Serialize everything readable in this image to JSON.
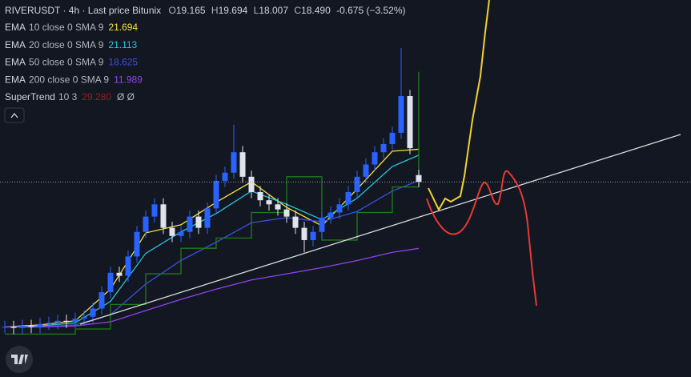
{
  "chart_data": {
    "type": "candlestick",
    "header": {
      "symbol": "RIVERUSDT · 4h · Last price Bitunix",
      "ohlc": [
        {
          "k": "O",
          "v": "19.165"
        },
        {
          "k": "H",
          "v": "19.694"
        },
        {
          "k": "L",
          "v": "18.007"
        },
        {
          "k": "C",
          "v": "18.490"
        }
      ],
      "change": "-0.675 (−3.52%)"
    },
    "ylim": [
      -0.6,
      36.3
    ],
    "up_color": "#2962ff",
    "down_color": "#e0e3eb",
    "last_price_line": true,
    "open": [
      4.3,
      4.3,
      4.2,
      4.4,
      4.3,
      4.6,
      4.7,
      4.9,
      4.8,
      5.1,
      5.3,
      6.1,
      7.7,
      9.6,
      9.3,
      11.2,
      13.6,
      15.1,
      16.3,
      14.0,
      13.2,
      13.6,
      15.1,
      14.0,
      15.9,
      18.6,
      19.4,
      21.4,
      19.0,
      17.5,
      16.7,
      16.3,
      15.8,
      15.1,
      14.0,
      12.8,
      13.6,
      15.0,
      15.5,
      16.3,
      17.5,
      19.0,
      20.2,
      21.4,
      22.2,
      23.3,
      26.9,
      19.165
    ],
    "high": [
      4.9,
      4.9,
      5.0,
      5.0,
      5.2,
      5.3,
      5.5,
      5.5,
      5.7,
      5.9,
      6.7,
      8.3,
      10.2,
      10.2,
      11.8,
      14.2,
      15.7,
      16.9,
      16.9,
      14.6,
      14.2,
      15.7,
      15.7,
      16.5,
      19.2,
      20.0,
      24.1,
      22.0,
      19.6,
      18.1,
      17.3,
      16.9,
      16.4,
      15.7,
      14.6,
      14.2,
      15.6,
      16.1,
      16.9,
      18.1,
      19.6,
      20.8,
      22.0,
      22.8,
      23.9,
      31.6,
      27.5,
      19.694
    ],
    "low": [
      3.7,
      3.6,
      3.6,
      3.7,
      3.7,
      4.0,
      4.1,
      4.2,
      4.2,
      4.5,
      4.7,
      5.5,
      7.1,
      8.7,
      8.7,
      10.6,
      13.0,
      14.5,
      13.4,
      12.6,
      12.6,
      13.0,
      13.4,
      13.4,
      15.3,
      18.0,
      18.8,
      18.4,
      16.9,
      16.1,
      15.7,
      15.2,
      14.5,
      13.4,
      11.6,
      12.2,
      13.0,
      14.4,
      14.9,
      15.7,
      16.9,
      18.4,
      19.6,
      20.8,
      21.6,
      22.7,
      21.2,
      18.007
    ],
    "close": [
      4.3,
      4.2,
      4.4,
      4.3,
      4.6,
      4.7,
      4.9,
      4.8,
      5.1,
      5.3,
      6.1,
      7.7,
      9.6,
      9.3,
      11.2,
      13.6,
      15.1,
      16.3,
      14.0,
      13.2,
      13.6,
      15.1,
      14.0,
      15.9,
      18.6,
      19.4,
      21.4,
      19.0,
      17.5,
      16.7,
      16.3,
      15.8,
      15.1,
      14.0,
      12.8,
      13.6,
      15.0,
      15.5,
      16.3,
      17.5,
      19.0,
      20.2,
      21.4,
      22.2,
      23.3,
      26.9,
      21.8,
      18.49
    ],
    "indicators": [
      {
        "name": "EMA",
        "params": "10 close 0 SMA 9",
        "value_label": "21.694",
        "color": "#f5e23b",
        "x": [
          0,
          4,
          8,
          12,
          16,
          20,
          24,
          28,
          32,
          36,
          40,
          44,
          47
        ],
        "values": [
          4.3,
          4.5,
          4.9,
          8.0,
          13.5,
          14.3,
          16.5,
          18.5,
          16.0,
          14.2,
          17.8,
          21.5,
          21.694
        ]
      },
      {
        "name": "EMA",
        "params": "20 close 0 SMA 9",
        "value_label": "21.113",
        "color": "#26c6da",
        "x": [
          0,
          4,
          8,
          12,
          16,
          20,
          24,
          28,
          32,
          36,
          40,
          44,
          47
        ],
        "values": [
          4.3,
          4.4,
          4.7,
          6.8,
          11.5,
          13.6,
          15.4,
          17.6,
          16.3,
          14.8,
          16.9,
          20.0,
          21.113
        ]
      },
      {
        "name": "EMA",
        "params": "50 close 0 SMA 9",
        "value_label": "18.625",
        "color": "#3d4fe0",
        "x": [
          0,
          4,
          8,
          12,
          16,
          20,
          24,
          28,
          32,
          36,
          40,
          44,
          47
        ],
        "values": [
          4.3,
          4.3,
          4.5,
          5.5,
          8.5,
          10.8,
          12.6,
          14.5,
          15.0,
          14.6,
          15.6,
          17.6,
          18.625
        ]
      },
      {
        "name": "EMA",
        "params": "200 close 0 SMA 9",
        "value_label": "11.989",
        "color": "#8e44ec",
        "x": [
          0,
          4,
          8,
          12,
          16,
          20,
          24,
          28,
          32,
          36,
          40,
          44,
          47
        ],
        "values": [
          4.3,
          4.3,
          4.4,
          4.8,
          5.9,
          7.0,
          8.0,
          8.9,
          9.5,
          10.1,
          10.8,
          11.6,
          11.989
        ]
      },
      {
        "name": "SuperTrend",
        "params": "10 3",
        "value_label": "29.280",
        "color": "#1e7b1e",
        "label_color": "#9b1c1c",
        "step": true,
        "x": [
          0,
          4,
          8,
          12,
          16,
          20,
          24,
          28,
          32,
          36,
          40,
          44,
          47
        ],
        "values": [
          3.6,
          3.6,
          4.1,
          6.5,
          9.5,
          12.0,
          13.0,
          15.5,
          19.0,
          12.8,
          15.5,
          18.0,
          29.28
        ]
      }
    ]
  }
}
